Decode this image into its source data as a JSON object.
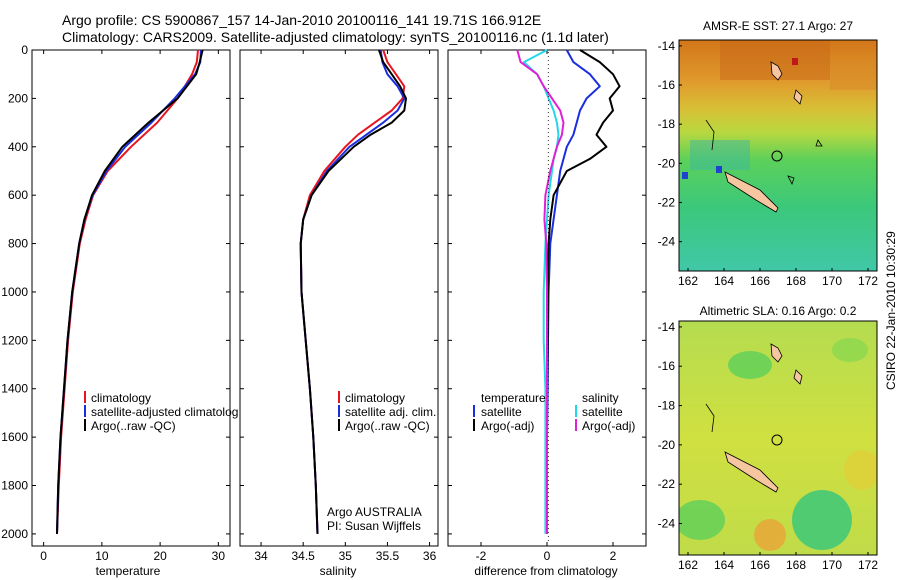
{
  "titles": {
    "line1": "Argo profile: CS 5900867_157 14-Jan-2010 20100116_141 19.71S 166.912E",
    "line2": "Climatology: CARS2009. Satellite-adjusted climatology: synTS_20100116.nc (1.1d later)"
  },
  "side_stamp": "CSIRO 22-Jan-2010 10:30:29",
  "colors": {
    "climatology": "#e8141e",
    "satellite": "#1a2ee0",
    "argo": "#000000",
    "salinity_satellite": "#22d8e8",
    "salinity_argo": "#e020d8",
    "island": "#f5c6a0"
  },
  "chart_data": [
    {
      "type": "line",
      "panel": "temperature",
      "xlabel": "temperature",
      "ylabel": "",
      "xlim": [
        -2,
        32
      ],
      "ylim": [
        2050,
        0
      ],
      "xticks": [
        0,
        10,
        20,
        30
      ],
      "yticks": [
        0,
        200,
        400,
        600,
        800,
        1000,
        1200,
        1400,
        1600,
        1800,
        2000
      ],
      "legend": [
        "climatology",
        "satellite-adjusted climatolog",
        "Argo(..raw -QC)"
      ],
      "depth": [
        0,
        50,
        100,
        200,
        300,
        400,
        500,
        600,
        700,
        800,
        1000,
        1200,
        1400,
        1600,
        1800,
        2000
      ],
      "series": [
        {
          "name": "climatology",
          "color": "#e8141e",
          "values": [
            26.5,
            26.3,
            25.5,
            23.0,
            19.5,
            15.0,
            11.0,
            8.5,
            7.2,
            6.2,
            5.0,
            4.2,
            3.6,
            3.0,
            2.6,
            2.3
          ]
        },
        {
          "name": "satellite-adjusted climatolog",
          "color": "#1a2ee0",
          "values": [
            27.0,
            26.9,
            26.0,
            22.5,
            18.5,
            14.0,
            10.8,
            8.4,
            7.0,
            6.1,
            4.9,
            4.1,
            3.5,
            2.9,
            2.5,
            2.3
          ]
        },
        {
          "name": "Argo(..raw -QC)",
          "color": "#000000",
          "values": [
            27.3,
            26.8,
            26.2,
            23.0,
            18.0,
            13.5,
            10.5,
            8.3,
            7.0,
            6.1,
            4.9,
            4.1,
            3.5,
            2.9,
            2.5,
            2.3
          ]
        }
      ]
    },
    {
      "type": "line",
      "panel": "salinity",
      "xlabel": "salinity",
      "xlim": [
        33.75,
        36.1
      ],
      "ylim": [
        2050,
        0
      ],
      "xticks": [
        34,
        34.5,
        35,
        35.5,
        36
      ],
      "legend": [
        "climatology",
        "satellite adj. clim.",
        "Argo(..raw -QC)"
      ],
      "annotation": [
        "Argo AUSTRALIA",
        "PI: Susan Wijffels"
      ],
      "depth": [
        0,
        50,
        100,
        150,
        200,
        250,
        300,
        350,
        400,
        500,
        600,
        700,
        800,
        1000,
        1200,
        1400,
        1600,
        1800,
        2000
      ],
      "series": [
        {
          "name": "climatology",
          "color": "#e8141e",
          "values": [
            35.45,
            35.5,
            35.6,
            35.7,
            35.68,
            35.55,
            35.35,
            35.15,
            35.0,
            34.75,
            34.58,
            34.5,
            34.47,
            34.48,
            34.53,
            34.58,
            34.62,
            34.65,
            34.67
          ]
        },
        {
          "name": "satellite adj. clim.",
          "color": "#1a2ee0",
          "values": [
            35.42,
            35.44,
            35.5,
            35.62,
            35.7,
            35.62,
            35.45,
            35.25,
            35.05,
            34.78,
            34.6,
            34.5,
            34.47,
            34.48,
            34.53,
            34.58,
            34.62,
            34.65,
            34.67
          ]
        },
        {
          "name": "Argo(..raw -QC)",
          "color": "#000000",
          "values": [
            35.4,
            35.45,
            35.55,
            35.65,
            35.72,
            35.7,
            35.55,
            35.3,
            35.1,
            34.8,
            34.6,
            34.5,
            34.47,
            34.48,
            34.53,
            34.58,
            34.62,
            34.65,
            34.67
          ]
        }
      ]
    },
    {
      "type": "line",
      "panel": "difference",
      "xlabel": "difference from climatology",
      "xlim": [
        -3,
        3
      ],
      "ylim": [
        2050,
        0
      ],
      "xticks": [
        -2,
        0,
        2
      ],
      "legend_left_title": "temperature",
      "legend_left": [
        "satellite",
        "Argo(-adj)"
      ],
      "legend_right_title": "salinity",
      "legend_right": [
        "satellite",
        "Argo(-adj)"
      ],
      "depth": [
        0,
        50,
        100,
        150,
        200,
        250,
        300,
        350,
        400,
        450,
        500,
        600,
        700,
        800,
        1000,
        1200,
        1400,
        1600,
        1800,
        2000
      ],
      "series": [
        {
          "name": "temperature satellite",
          "color": "#1a2ee0",
          "values": [
            0.6,
            0.8,
            1.3,
            1.6,
            1.2,
            1.0,
            0.9,
            0.8,
            0.6,
            0.5,
            0.4,
            0.3,
            0.2,
            0.1,
            0.05,
            0.03,
            0.02,
            0.0,
            0.0,
            0.0
          ]
        },
        {
          "name": "temperature Argo(-adj)",
          "color": "#000000",
          "values": [
            1.0,
            1.6,
            2.0,
            2.2,
            1.9,
            2.0,
            1.7,
            1.5,
            1.8,
            1.3,
            0.6,
            0.2,
            0.1,
            0.05,
            0.03,
            0.02,
            0.0,
            0.0,
            0.0,
            0.0
          ]
        },
        {
          "name": "salinity satellite",
          "color": "#22d8e8",
          "values": [
            0.0,
            -0.7,
            -0.3,
            -0.1,
            0.05,
            0.2,
            0.3,
            0.35,
            0.3,
            0.2,
            0.15,
            0.05,
            0.0,
            -0.05,
            -0.1,
            -0.1,
            -0.05,
            -0.05,
            -0.05,
            -0.05
          ]
        },
        {
          "name": "salinity Argo(-adj)",
          "color": "#e020d8",
          "values": [
            -0.9,
            -0.8,
            -0.3,
            -0.1,
            0.15,
            0.4,
            0.5,
            0.45,
            0.3,
            0.2,
            0.1,
            -0.05,
            -0.08,
            -0.02,
            0.0,
            0.0,
            0.0,
            0.0,
            0.0,
            0.0
          ]
        }
      ]
    },
    {
      "type": "heatmap",
      "panel": "map-sst",
      "title": "AMSR-E SST: 27.1 Argo: 27",
      "xlim": [
        161.5,
        172.5
      ],
      "ylim": [
        -25.5,
        -13.7
      ],
      "xticks": [
        162,
        164,
        166,
        168,
        170,
        172
      ],
      "yticks": [
        -14,
        -16,
        -18,
        -20,
        -22,
        -24
      ],
      "float_position": {
        "lon": 166.912,
        "lat": -19.71
      }
    },
    {
      "type": "heatmap",
      "panel": "map-sla",
      "title": "Altimetric SLA: 0.16 Argo: 0.2",
      "xlim": [
        161.5,
        172.5
      ],
      "ylim": [
        -25.6,
        -13.7
      ],
      "xticks": [
        162,
        164,
        166,
        168,
        170,
        172
      ],
      "yticks": [
        -14,
        -16,
        -18,
        -20,
        -22,
        -24
      ],
      "float_position": {
        "lon": 166.912,
        "lat": -19.71
      }
    }
  ]
}
